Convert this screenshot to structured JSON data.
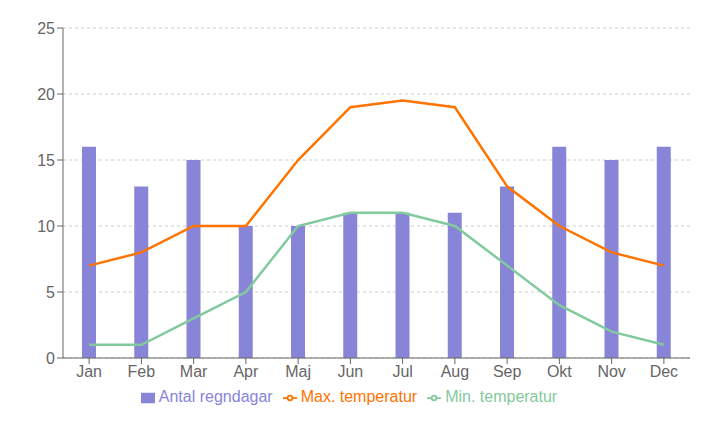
{
  "chart_data": {
    "type": "bar",
    "categories": [
      "Jan",
      "Feb",
      "Mar",
      "Apr",
      "Maj",
      "Jun",
      "Jul",
      "Aug",
      "Sep",
      "Okt",
      "Nov",
      "Dec"
    ],
    "series": [
      {
        "name": "Antal regndagar",
        "type": "bar",
        "color": "#8884d8",
        "values": [
          16,
          13,
          15,
          10,
          10,
          11,
          11,
          11,
          13,
          16,
          15,
          16
        ]
      },
      {
        "name": "Min. temperatur",
        "type": "line",
        "color": "#82ca9d",
        "values": [
          1,
          1,
          3,
          5,
          10,
          11,
          11,
          10,
          7,
          4,
          2,
          1
        ]
      },
      {
        "name": "Max. temperatur",
        "type": "line",
        "color": "#ff7300",
        "values": [
          7,
          8,
          10,
          10,
          15,
          19,
          19.5,
          19,
          13,
          10,
          8,
          7
        ]
      }
    ],
    "ylim": [
      0,
      25
    ],
    "yticks": [
      0,
      5,
      10,
      15,
      20,
      25
    ],
    "grid": true,
    "legend": "bottom"
  }
}
